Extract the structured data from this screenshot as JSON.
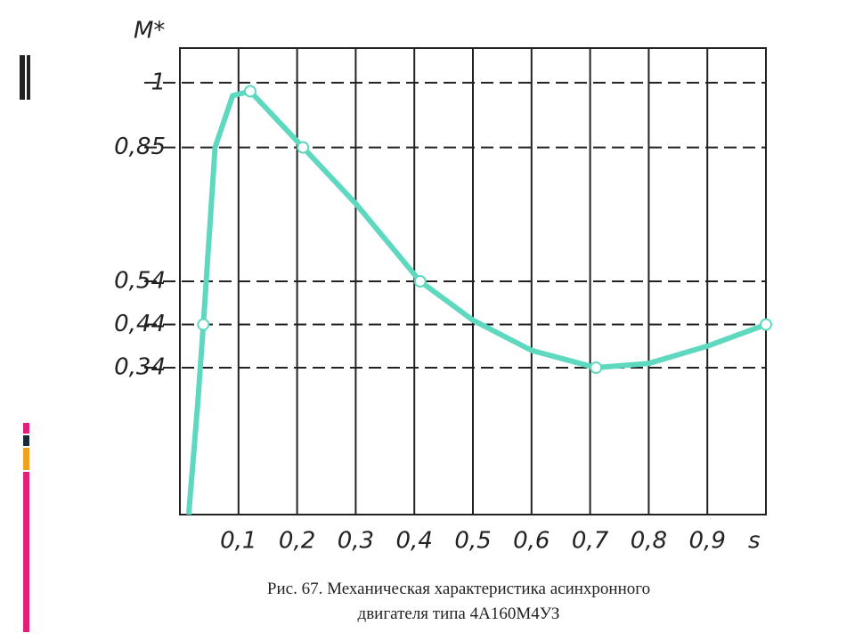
{
  "chart_data": {
    "type": "line",
    "y_label": "M*",
    "x_label": "s",
    "caption": [
      "Рис. 67. Механическая характеристика асинхронного",
      "двигателя типа 4А160М4УЗ"
    ],
    "x": [
      0.015,
      0.03,
      0.04,
      0.06,
      0.09,
      0.12,
      0.21,
      0.3,
      0.41,
      0.5,
      0.6,
      0.71,
      0.8,
      0.9,
      1.0
    ],
    "values": [
      0,
      0.25,
      0.44,
      0.85,
      0.97,
      0.98,
      0.85,
      0.72,
      0.54,
      0.45,
      0.38,
      0.34,
      0.35,
      0.39,
      0.44
    ],
    "points": {
      "x": [
        0.04,
        0.12,
        0.21,
        0.41,
        0.71,
        1.0
      ],
      "values": [
        0.44,
        0.98,
        0.85,
        0.54,
        0.34,
        0.44
      ]
    },
    "color": "#5fd8c0",
    "xlim": [
      0,
      1
    ],
    "ylim": [
      0,
      1.08
    ],
    "xticks": [
      {
        "value": 0.1,
        "label": "0,1"
      },
      {
        "value": 0.2,
        "label": "0,2"
      },
      {
        "value": 0.3,
        "label": "0,3"
      },
      {
        "value": 0.4,
        "label": "0,4"
      },
      {
        "value": 0.5,
        "label": "0,5"
      },
      {
        "value": 0.6,
        "label": "0,6"
      },
      {
        "value": 0.7,
        "label": "0,7"
      },
      {
        "value": 0.8,
        "label": "0,8"
      },
      {
        "value": 0.9,
        "label": "0,9"
      }
    ],
    "yticks": [
      1,
      {
        "value": 0.85,
        "label": "0,85"
      },
      {
        "value": 0.54,
        "label": "0,54"
      },
      {
        "value": 0.44,
        "label": "0,44"
      },
      {
        "value": 0.34,
        "label": "0,34"
      }
    ],
    "grid": true
  }
}
